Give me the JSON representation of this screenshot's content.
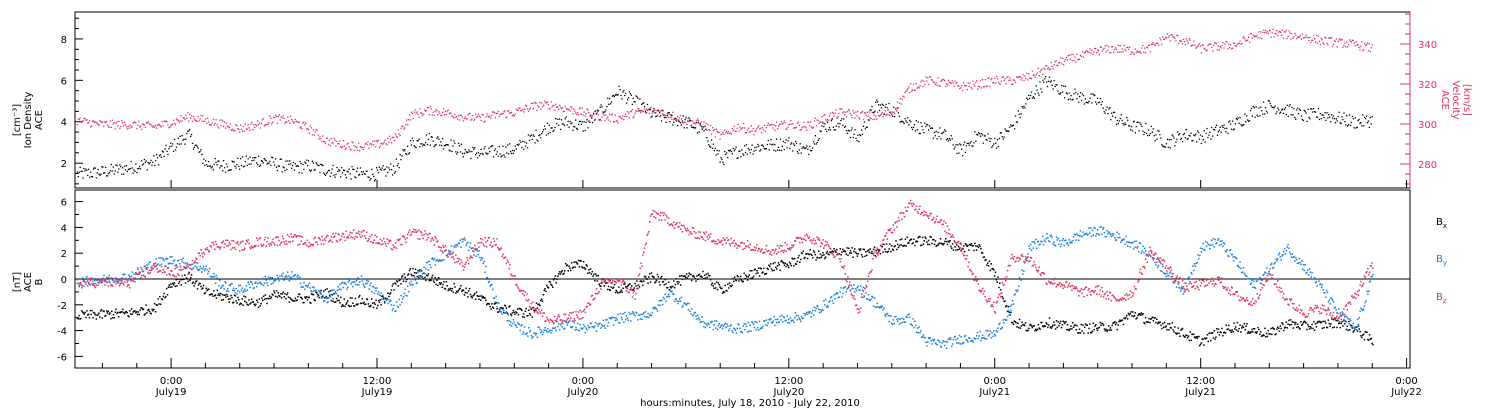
{
  "figure": {
    "xlabel": "hours:minutes, July 18, 2010 - July 22, 2010",
    "x_ticks": [
      {
        "h": 0,
        "time": "0:00",
        "date": "July19"
      },
      {
        "h": 12,
        "time": "12:00",
        "date": "July19"
      },
      {
        "h": 24,
        "time": "0:00",
        "date": "July20"
      },
      {
        "h": 36,
        "time": "12:00",
        "date": "July20"
      },
      {
        "h": 48,
        "time": "0:00",
        "date": "July21"
      },
      {
        "h": 60,
        "time": "12:00",
        "date": "July21"
      },
      {
        "h": 72,
        "time": "0:00",
        "date": "July22"
      }
    ]
  },
  "chart_data": [
    {
      "type": "scatter",
      "title": "",
      "xlim": [
        -5.6,
        72.2
      ],
      "x_unit": "hours since July 19 0:00",
      "left_axis": {
        "label_lines": [
          "ACE",
          "Ion Density",
          "[cm⁻³]"
        ],
        "ylim": [
          0.8,
          9.3
        ],
        "ticks": [
          2,
          4,
          6,
          8
        ]
      },
      "right_axis": {
        "label_lines": [
          "ACE",
          "Velocity",
          "[km/s]"
        ],
        "ylim": [
          268,
          356
        ],
        "ticks": [
          280,
          300,
          320,
          340
        ],
        "color": "#e0325c"
      },
      "series": [
        {
          "axis": "left",
          "color": "#000000",
          "x": [
            -5.5,
            -4,
            -2.5,
            -1,
            0,
            1,
            2,
            3,
            4,
            5,
            6,
            7,
            8,
            9,
            10,
            11,
            12,
            13,
            14,
            15,
            16,
            17,
            18,
            19,
            20,
            21,
            22,
            23,
            24,
            25,
            26,
            27,
            28,
            29,
            30,
            31,
            32,
            33,
            34,
            35,
            36,
            37,
            38,
            39,
            40,
            41,
            42,
            43,
            44,
            45,
            46,
            47,
            48,
            49,
            50,
            51,
            52,
            53,
            54,
            55,
            56,
            57,
            58,
            59,
            60,
            61,
            62,
            63,
            64,
            65,
            66,
            67,
            68,
            69,
            70
          ],
          "y": [
            1.5,
            1.6,
            1.8,
            2.1,
            2.8,
            3.4,
            2.0,
            1.9,
            2.0,
            2.2,
            2.0,
            1.8,
            1.9,
            1.7,
            1.6,
            1.5,
            1.5,
            1.8,
            3.0,
            3.2,
            3.0,
            2.6,
            2.5,
            2.6,
            2.7,
            3.2,
            3.8,
            4.0,
            3.8,
            4.5,
            5.5,
            5.0,
            4.4,
            4.2,
            4.0,
            3.6,
            2.2,
            2.6,
            2.8,
            2.9,
            3.0,
            2.6,
            3.8,
            4.0,
            3.2,
            4.8,
            4.6,
            4.0,
            3.6,
            3.4,
            2.6,
            3.4,
            3.0,
            3.8,
            5.2,
            6.0,
            5.5,
            5.2,
            5.0,
            4.2,
            3.8,
            3.6,
            3.0,
            3.4,
            3.3,
            3.6,
            3.9,
            4.5,
            4.8,
            4.6,
            4.3,
            4.4,
            4.2,
            4.0,
            4.1
          ]
        },
        {
          "axis": "right",
          "color": "#e0325c",
          "x": [
            -5.5,
            -4,
            -2.5,
            -1,
            0,
            1,
            2,
            3,
            4,
            5,
            6,
            7,
            8,
            9,
            10,
            11,
            12,
            13,
            14,
            15,
            16,
            17,
            18,
            19,
            20,
            21,
            22,
            23,
            24,
            25,
            26,
            27,
            28,
            29,
            30,
            31,
            32,
            33,
            34,
            35,
            36,
            37,
            38,
            39,
            40,
            41,
            42,
            43,
            44,
            45,
            46,
            47,
            48,
            49,
            50,
            51,
            52,
            53,
            54,
            55,
            56,
            57,
            58,
            59,
            60,
            61,
            62,
            63,
            64,
            65,
            66,
            67,
            68,
            69,
            70
          ],
          "y": [
            302,
            300,
            300,
            299,
            301,
            304,
            302,
            300,
            298,
            300,
            303,
            302,
            298,
            292,
            290,
            289,
            290,
            293,
            305,
            307,
            306,
            304,
            303,
            305,
            306,
            309,
            310,
            308,
            306,
            304,
            303,
            306,
            307,
            305,
            302,
            300,
            294,
            299,
            297,
            299,
            300,
            299,
            303,
            306,
            305,
            304,
            306,
            318,
            322,
            321,
            319,
            320,
            322,
            322,
            324,
            328,
            332,
            334,
            337,
            338,
            337,
            338,
            344,
            342,
            338,
            339,
            340,
            344,
            346,
            345,
            344,
            342,
            341,
            340,
            338
          ]
        }
      ]
    },
    {
      "type": "scatter",
      "title": "",
      "xlim": [
        -5.6,
        72.2
      ],
      "x_unit": "hours since July 19 0:00",
      "left_axis": {
        "label_lines": [
          "ACE",
          "B",
          "[nT]"
        ],
        "ylim": [
          -6.9,
          6.9
        ],
        "ticks": [
          -6,
          -4,
          -2,
          0,
          2,
          4,
          6
        ]
      },
      "zero_line": true,
      "series": [
        {
          "name": "Bx",
          "legend": {
            "main": "B",
            "sub": "x"
          },
          "color": "#000000",
          "x": [
            -5.5,
            -4,
            -2.5,
            -1,
            0,
            1,
            2,
            3,
            4,
            5,
            6,
            7,
            8,
            9,
            10,
            11,
            12,
            13,
            14,
            15,
            16,
            17,
            18,
            19,
            20,
            21,
            22,
            23,
            24,
            25,
            26,
            27,
            28,
            29,
            30,
            31,
            32,
            33,
            34,
            35,
            36,
            37,
            38,
            39,
            40,
            41,
            42,
            43,
            44,
            45,
            46,
            47,
            48,
            49,
            50,
            51,
            52,
            53,
            54,
            55,
            56,
            57,
            58,
            59,
            60,
            61,
            62,
            63,
            64,
            65,
            66,
            67,
            68,
            69,
            70
          ],
          "y": [
            -2.8,
            -2.7,
            -2.6,
            -2.2,
            -0.3,
            0.2,
            -1.0,
            -1.3,
            -1.6,
            -1.8,
            -1.2,
            -1.4,
            -1.5,
            -1.0,
            -1.8,
            -1.6,
            -2.0,
            -0.5,
            0.6,
            0.2,
            -0.5,
            -0.8,
            -1.5,
            -2.2,
            -2.5,
            -2.6,
            -0.5,
            1.0,
            1.2,
            -0.2,
            -0.8,
            -0.5,
            0.2,
            -0.4,
            0.1,
            0.4,
            -0.8,
            0.0,
            0.5,
            1.0,
            1.2,
            2.0,
            1.8,
            2.3,
            2.0,
            2.2,
            2.6,
            3.0,
            3.0,
            2.9,
            2.5,
            2.6,
            0.4,
            -3.2,
            -3.8,
            -3.3,
            -3.6,
            -3.8,
            -3.7,
            -3.6,
            -2.6,
            -3.2,
            -3.5,
            -4.2,
            -4.8,
            -4.1,
            -3.6,
            -3.9,
            -4.2,
            -3.4,
            -3.6,
            -3.5,
            -3.3,
            -3.8,
            -4.8
          ]
        },
        {
          "name": "By",
          "legend": {
            "main": "B",
            "sub": "y"
          },
          "color": "#1a7fe0",
          "x": [
            -5.5,
            -4,
            -2.5,
            -1,
            0,
            1,
            2,
            3,
            4,
            5,
            6,
            7,
            8,
            9,
            10,
            11,
            12,
            13,
            14,
            15,
            16,
            17,
            18,
            19,
            20,
            21,
            22,
            23,
            24,
            25,
            26,
            27,
            28,
            29,
            30,
            31,
            32,
            33,
            34,
            35,
            36,
            37,
            38,
            39,
            40,
            41,
            42,
            43,
            44,
            45,
            46,
            47,
            48,
            49,
            50,
            51,
            52,
            53,
            54,
            55,
            56,
            57,
            58,
            59,
            60,
            61,
            62,
            63,
            64,
            65,
            66,
            67,
            68,
            69,
            70
          ],
          "y": [
            -0.2,
            0.0,
            0.2,
            1.3,
            1.5,
            1.2,
            0.8,
            -0.5,
            -0.8,
            -0.2,
            0.0,
            0.3,
            -0.6,
            -1.5,
            -0.5,
            0.0,
            -1.0,
            -2.2,
            -0.3,
            1.2,
            2.0,
            3.0,
            1.8,
            -2.0,
            -3.6,
            -4.2,
            -3.8,
            -3.4,
            -3.8,
            -3.6,
            -3.0,
            -2.8,
            -2.6,
            -1.0,
            -2.0,
            -3.4,
            -3.6,
            -3.8,
            -3.6,
            -3.2,
            -3.0,
            -2.8,
            -2.0,
            -1.0,
            -0.5,
            -1.8,
            -3.2,
            -3.0,
            -4.8,
            -5.0,
            -4.6,
            -4.4,
            -4.2,
            -2.0,
            2.5,
            3.2,
            2.8,
            3.5,
            3.8,
            3.4,
            2.8,
            2.0,
            0.5,
            -0.8,
            2.5,
            3.0,
            1.5,
            -0.5,
            0.8,
            2.5,
            1.0,
            -0.6,
            -2.6,
            -3.8,
            0.3
          ]
        },
        {
          "name": "Bz",
          "legend": {
            "main": "B",
            "sub": "z"
          },
          "color": "#e0325c",
          "x": [
            -5.5,
            -4,
            -2.5,
            -1,
            0,
            1,
            2,
            3,
            4,
            5,
            6,
            7,
            8,
            9,
            10,
            11,
            12,
            13,
            14,
            15,
            16,
            17,
            18,
            19,
            20,
            21,
            22,
            23,
            24,
            25,
            26,
            27,
            28,
            29,
            30,
            31,
            32,
            33,
            34,
            35,
            36,
            37,
            38,
            39,
            40,
            41,
            42,
            43,
            44,
            45,
            46,
            47,
            48,
            49,
            50,
            51,
            52,
            53,
            54,
            55,
            56,
            57,
            58,
            59,
            60,
            61,
            62,
            63,
            64,
            65,
            66,
            67,
            68,
            69,
            70
          ],
          "y": [
            -0.3,
            -0.2,
            -0.3,
            1.0,
            0.5,
            0.8,
            2.5,
            2.8,
            2.6,
            2.9,
            3.0,
            3.2,
            2.8,
            3.2,
            3.4,
            3.6,
            3.0,
            2.6,
            3.6,
            3.4,
            2.2,
            1.0,
            3.0,
            2.8,
            0.0,
            -2.0,
            -3.2,
            -3.0,
            -2.6,
            -0.4,
            0.0,
            -1.2,
            5.2,
            4.6,
            3.8,
            3.4,
            3.0,
            2.8,
            2.6,
            2.2,
            2.6,
            3.4,
            2.8,
            1.6,
            -2.6,
            2.0,
            4.0,
            5.8,
            5.2,
            4.2,
            2.6,
            -0.5,
            -2.2,
            1.8,
            1.6,
            0.0,
            -0.4,
            -1.0,
            -0.8,
            -1.6,
            -1.0,
            2.2,
            1.0,
            -0.6,
            -0.4,
            0.0,
            -1.2,
            -1.8,
            0.5,
            -1.6,
            -2.6,
            -2.2,
            -3.0,
            -1.2,
            1.2
          ]
        }
      ]
    }
  ]
}
